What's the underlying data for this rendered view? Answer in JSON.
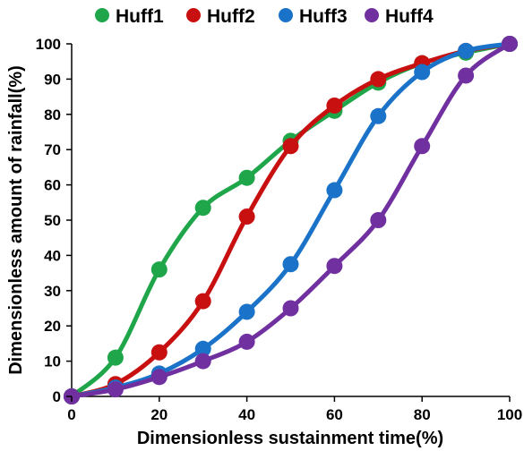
{
  "chart_data": {
    "type": "line",
    "title": "",
    "xlabel": "Dimensionless sustainment time(%)",
    "ylabel": "Dimensionless amount of rainfall(%)",
    "xlim": [
      0,
      100
    ],
    "ylim": [
      0,
      100
    ],
    "xticks": [
      "0",
      "20",
      "40",
      "60",
      "80",
      "100"
    ],
    "yticks": [
      "0",
      "10",
      "20",
      "30",
      "40",
      "50",
      "60",
      "70",
      "80",
      "90",
      "100"
    ],
    "grid": false,
    "legend_position": "top",
    "x": [
      0,
      10,
      20,
      30,
      40,
      50,
      60,
      70,
      80,
      90,
      100
    ],
    "series": [
      {
        "name": "Huff1",
        "color": "#1fa64a",
        "values": [
          0,
          11,
          36,
          53.5,
          62,
          72.5,
          81,
          89,
          94.5,
          97.5,
          100
        ]
      },
      {
        "name": "Huff2",
        "color": "#c81010",
        "values": [
          0,
          3.5,
          12.5,
          27,
          51,
          71,
          82.5,
          90,
          94.5,
          98,
          100
        ]
      },
      {
        "name": "Huff3",
        "color": "#1a73c8",
        "values": [
          0,
          2.5,
          6.5,
          13.5,
          24,
          37.5,
          58.5,
          79.5,
          92,
          98,
          100
        ]
      },
      {
        "name": "Huff4",
        "color": "#7030a0",
        "values": [
          0,
          2,
          5.5,
          10,
          15.5,
          25,
          37,
          50,
          71,
          91,
          100
        ]
      }
    ]
  }
}
